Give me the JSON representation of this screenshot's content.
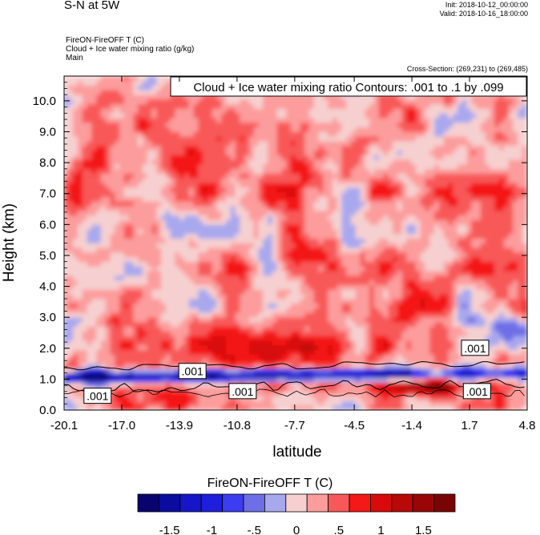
{
  "header": {
    "title": "S-N at 5W",
    "init": "Init: 2018-10-12_00:00:00",
    "valid": "Valid: 2018-10-16_18:00:00",
    "subtitle_lines": [
      "FireON-FireOFF T   (C)",
      "Cloud + Ice water mixing ratio   (g/kg)",
      "Main"
    ],
    "cross_section": "Cross-Section: (269,231) to (269,485)"
  },
  "chart_data": {
    "type": "heatmap",
    "contour_label": "Cloud + Ice water mixing ratio Contours: .001 to .1 by .099",
    "xlabel": "latitude",
    "ylabel": "Height (km)",
    "xlim": [
      -20.1,
      4.8
    ],
    "ylim": [
      0.0,
      10.8
    ],
    "x_ticks": [
      "-20.1",
      "-17.0",
      "-13.9",
      "-10.8",
      "-7.7",
      "-4.5",
      "-1.4",
      "1.7",
      "4.8"
    ],
    "y_ticks": [
      "0.0",
      "1.0",
      "2.0",
      "3.0",
      "4.0",
      "5.0",
      "6.0",
      "7.0",
      "8.0",
      "9.0",
      "10.0"
    ],
    "contour_labels": [
      {
        "text": ".001",
        "lat": -13.2,
        "height": 1.25
      },
      {
        "text": ".001",
        "lat": -18.3,
        "height": 0.45
      },
      {
        "text": ".001",
        "lat": -10.5,
        "height": 0.6
      },
      {
        "text": ".001",
        "lat": 2.0,
        "height": 2.0
      },
      {
        "text": ".001",
        "lat": 2.1,
        "height": 0.6
      }
    ],
    "colorbar": {
      "title": "FireON-FireOFF T  (C)",
      "levels": [
        -1.75,
        -1.5,
        -1.25,
        -1.0,
        -0.75,
        -0.5,
        -0.25,
        0,
        0.25,
        0.5,
        0.75,
        1.0,
        1.25,
        1.5,
        1.75
      ],
      "colors": [
        "#08046e",
        "#0b0ba0",
        "#1616c8",
        "#1e1edc",
        "#3c3cf0",
        "#6e6ee6",
        "#a8a8ee",
        "#f6d0d0",
        "#fc9c9c",
        "#f85858",
        "#f41818",
        "#d80a0a",
        "#b80808",
        "#980606",
        "#7a0404"
      ],
      "tick_labels": [
        "-1.5",
        "-1",
        "-.5",
        "0",
        ".5",
        "1",
        "1.5"
      ],
      "tick_values": [
        -1.5,
        -1.0,
        -0.5,
        0,
        0.5,
        1.0,
        1.5
      ]
    }
  }
}
